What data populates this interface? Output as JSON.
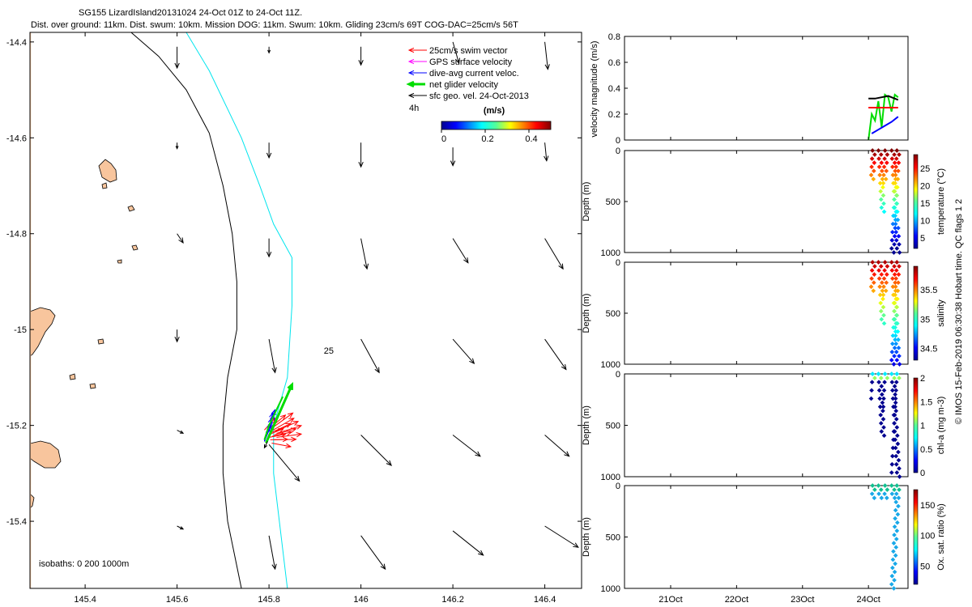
{
  "header": {
    "title_line1": "SG155 LizardIsland20131024 24-Oct 01Z to 24-Oct 11Z.",
    "title_line2": "Dist. over ground: 11km. Dist. swum: 10km. Mission DOG: 11km. Swum: 10km. Gliding 23cm/s 69T COG-DAC=25cm/s 56T"
  },
  "credit": "© IMOS 15-Feb-2019 06:30:38 Hobart time. QC flags 1  2",
  "colors": {
    "land": "#f8c59d",
    "isobath_200": "#000000",
    "isobath_1000": "#00e5ee",
    "swim": "#ff0000",
    "gps": "#ff00ff",
    "dac": "#0000ff",
    "net": "#00dd00",
    "sfc": "#000000"
  },
  "chart_data": [
    {
      "id": "map",
      "type": "map",
      "x_ticks": [
        145.4,
        145.6,
        145.8,
        146,
        146.2,
        146.4
      ],
      "x_tick_labels": [
        "145.4",
        "145.6",
        "145.8",
        "146",
        "146.2",
        "146.4"
      ],
      "y_ticks": [
        -14.4,
        -14.6,
        -14.8,
        -15,
        -15.2,
        -15.4
      ],
      "y_tick_labels": [
        "-14.4",
        "-14.6",
        "-14.8",
        "-15",
        "-15.2",
        "-15.4"
      ],
      "xlim": [
        145.28,
        146.48
      ],
      "ylim": [
        -15.54,
        -14.38
      ],
      "legend": [
        {
          "label": "25cm/s swim vector",
          "color": "#ff0000"
        },
        {
          "label": "GPS surface velocity",
          "color": "#ff00ff"
        },
        {
          "label": "dive-avg current veloc.",
          "color": "#0000ff"
        },
        {
          "label": "net glider velocity",
          "color": "#00dd00"
        },
        {
          "label": "sfc geo. vel. 24-Oct-2013",
          "color": "#000000"
        }
      ],
      "time_label": "4h",
      "colorbar": {
        "title": "(m/s)",
        "ticks": [
          "0",
          "0.2",
          "0.4"
        ],
        "range": [
          0,
          0.5
        ]
      },
      "isobath_label": "isobaths: 0   200  1000m",
      "annotation": "25",
      "annotation_at": [
        145.93,
        -15.05
      ],
      "isobath_200": [
        [
          145.5,
          -14.38
        ],
        [
          145.56,
          -14.43
        ],
        [
          145.62,
          -14.5
        ],
        [
          145.67,
          -14.59
        ],
        [
          145.7,
          -14.7
        ],
        [
          145.72,
          -14.8
        ],
        [
          145.73,
          -14.9
        ],
        [
          145.73,
          -15.0
        ],
        [
          145.71,
          -15.1
        ],
        [
          145.7,
          -15.2
        ],
        [
          145.7,
          -15.3
        ],
        [
          145.71,
          -15.4
        ],
        [
          145.74,
          -15.54
        ]
      ],
      "isobath_1000": [
        [
          145.62,
          -14.38
        ],
        [
          145.67,
          -14.46
        ],
        [
          145.74,
          -14.6
        ],
        [
          145.78,
          -14.7
        ],
        [
          145.81,
          -14.78
        ],
        [
          145.85,
          -14.85
        ],
        [
          145.85,
          -14.95
        ],
        [
          145.84,
          -15.1
        ],
        [
          145.81,
          -15.2
        ],
        [
          145.81,
          -15.3
        ],
        [
          145.84,
          -15.54
        ]
      ],
      "sfc_vectors": [
        {
          "lon": 145.6,
          "lat": -14.41,
          "u": 0.0,
          "v": -0.35
        },
        {
          "lon": 145.8,
          "lat": -14.41,
          "u": 0.0,
          "v": -0.1
        },
        {
          "lon": 146.0,
          "lat": -14.41,
          "u": 0.0,
          "v": -0.3
        },
        {
          "lon": 146.2,
          "lat": -14.4,
          "u": 0.1,
          "v": -0.35
        },
        {
          "lon": 146.4,
          "lat": -14.4,
          "u": 0.05,
          "v": -0.45
        },
        {
          "lon": 145.6,
          "lat": -14.61,
          "u": 0.0,
          "v": -0.1
        },
        {
          "lon": 145.8,
          "lat": -14.61,
          "u": 0.0,
          "v": -0.25
        },
        {
          "lon": 146.0,
          "lat": -14.61,
          "u": 0.0,
          "v": -0.4
        },
        {
          "lon": 146.2,
          "lat": -14.62,
          "u": 0.0,
          "v": -0.3
        },
        {
          "lon": 146.4,
          "lat": -14.61,
          "u": 0.03,
          "v": -0.3
        },
        {
          "lon": 145.6,
          "lat": -14.8,
          "u": 0.1,
          "v": -0.15
        },
        {
          "lon": 145.8,
          "lat": -14.81,
          "u": 0.0,
          "v": -0.3
        },
        {
          "lon": 146.0,
          "lat": -14.81,
          "u": 0.1,
          "v": -0.5
        },
        {
          "lon": 146.2,
          "lat": -14.81,
          "u": 0.25,
          "v": -0.4
        },
        {
          "lon": 146.4,
          "lat": -14.81,
          "u": 0.3,
          "v": -0.5
        },
        {
          "lon": 145.6,
          "lat": -15.0,
          "u": 0.0,
          "v": -0.2
        },
        {
          "lon": 145.8,
          "lat": -15.02,
          "u": 0.1,
          "v": -0.55
        },
        {
          "lon": 146.0,
          "lat": -15.02,
          "u": 0.3,
          "v": -0.55
        },
        {
          "lon": 146.2,
          "lat": -15.02,
          "u": 0.35,
          "v": -0.4
        },
        {
          "lon": 146.4,
          "lat": -15.02,
          "u": 0.35,
          "v": -0.5
        },
        {
          "lon": 145.6,
          "lat": -15.21,
          "u": 0.1,
          "v": -0.05
        },
        {
          "lon": 145.8,
          "lat": -15.24,
          "u": 0.5,
          "v": -0.6
        },
        {
          "lon": 146.0,
          "lat": -15.22,
          "u": 0.5,
          "v": -0.5
        },
        {
          "lon": 146.2,
          "lat": -15.22,
          "u": 0.45,
          "v": -0.35
        },
        {
          "lon": 146.4,
          "lat": -15.22,
          "u": 0.4,
          "v": -0.35
        },
        {
          "lon": 145.6,
          "lat": -15.41,
          "u": 0.1,
          "v": -0.05
        },
        {
          "lon": 145.8,
          "lat": -15.43,
          "u": 0.1,
          "v": -0.55
        },
        {
          "lon": 146.0,
          "lat": -15.43,
          "u": 0.4,
          "v": -0.55
        },
        {
          "lon": 146.2,
          "lat": -15.42,
          "u": 0.5,
          "v": -0.4
        },
        {
          "lon": 146.4,
          "lat": -15.41,
          "u": 0.55,
          "v": -0.35
        }
      ],
      "glider_track": [
        [
          145.79,
          -15.23
        ],
        [
          145.8,
          -15.2
        ],
        [
          145.81,
          -15.18
        ],
        [
          145.82,
          -15.16
        ],
        [
          145.83,
          -15.14
        ]
      ]
    },
    {
      "id": "velocity",
      "type": "line",
      "ylabel": "velocity magnitude (m/s)",
      "ylim": [
        0,
        0.8
      ],
      "y_ticks": [
        "0",
        "0.2",
        "0.4",
        "0.6",
        "0.8"
      ],
      "series": [
        {
          "color": "#00dd00",
          "x": [
            24.0,
            24.05,
            24.1,
            24.15,
            24.2,
            24.25,
            24.3,
            24.35,
            24.4,
            24.45
          ],
          "y": [
            0.0,
            0.2,
            0.15,
            0.3,
            0.1,
            0.35,
            0.33,
            0.22,
            0.35,
            0.33
          ]
        },
        {
          "color": "#ff0000",
          "x": [
            24.0,
            24.45
          ],
          "y": [
            0.25,
            0.25
          ]
        },
        {
          "color": "#000000",
          "x": [
            24.0,
            24.1,
            24.2,
            24.3,
            24.4,
            24.45
          ],
          "y": [
            0.32,
            0.32,
            0.33,
            0.34,
            0.32,
            0.31
          ]
        },
        {
          "color": "#0000ff",
          "x": [
            24.05,
            24.15,
            24.25,
            24.35,
            24.45
          ],
          "y": [
            0.05,
            0.08,
            0.11,
            0.14,
            0.18
          ]
        }
      ]
    },
    {
      "id": "temperature",
      "type": "scatter",
      "ylabel": "Depth (m)",
      "ylim": [
        1000,
        0
      ],
      "y_ticks": [
        "0",
        "500",
        "1000"
      ],
      "cbar_label": "temperature (°C)",
      "cbar_ticks": [
        "5",
        "10",
        "15",
        "20",
        "25"
      ],
      "cbar_range": [
        2,
        29
      ]
    },
    {
      "id": "salinity",
      "type": "scatter",
      "ylabel": "Depth (m)",
      "ylim": [
        1000,
        0
      ],
      "y_ticks": [
        "0",
        "500",
        "1000"
      ],
      "cbar_label": "salinity",
      "cbar_ticks": [
        "34.5",
        "35",
        "35.5"
      ],
      "cbar_range": [
        34.3,
        35.9
      ]
    },
    {
      "id": "chla",
      "type": "scatter",
      "ylabel": "Depth (m)",
      "ylim": [
        1000,
        0
      ],
      "y_ticks": [
        "0",
        "500",
        "1000"
      ],
      "cbar_label": "chl-a (mg m-3)",
      "cbar_ticks": [
        "0",
        "0.5",
        "1",
        "1.5",
        "2"
      ],
      "cbar_range": [
        0,
        2
      ]
    },
    {
      "id": "oxygen",
      "type": "scatter",
      "ylabel": "Depth (m)",
      "ylim": [
        1000,
        0
      ],
      "y_ticks": [
        "0",
        "500",
        "1000"
      ],
      "cbar_label": "Ox. sat. ratio (%)",
      "cbar_ticks": [
        "50",
        "100",
        "150"
      ],
      "cbar_range": [
        20,
        175
      ],
      "x_ticks": [
        "21Oct",
        "22Oct",
        "23Oct",
        "24Oct"
      ],
      "xlim": [
        20.3,
        24.6
      ]
    }
  ]
}
